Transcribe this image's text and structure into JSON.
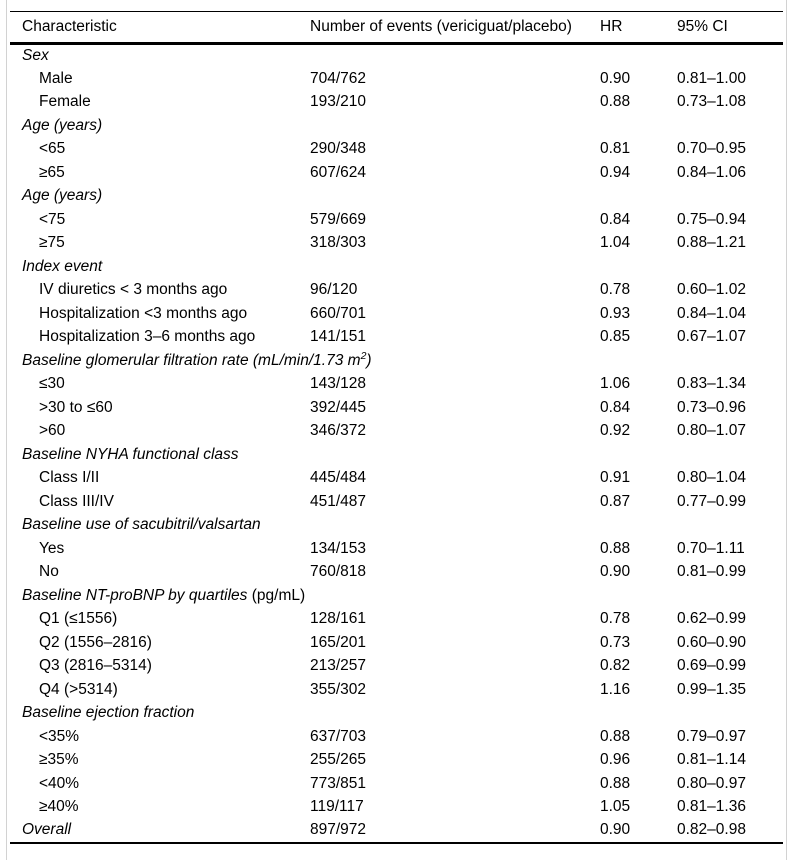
{
  "table": {
    "columns": [
      {
        "label": "Characteristic"
      },
      {
        "label": "Number of events (vericiguat/placebo)"
      },
      {
        "label": "HR"
      },
      {
        "label": "95% CI"
      }
    ],
    "rows": [
      {
        "type": "section",
        "label": "Sex"
      },
      {
        "type": "item",
        "label": "Male",
        "events": "704/762",
        "hr": "0.90",
        "ci": "0.81–1.00"
      },
      {
        "type": "item",
        "label": "Female",
        "events": "193/210",
        "hr": "0.88",
        "ci": "0.73–1.08"
      },
      {
        "type": "section",
        "label": "Age (years)"
      },
      {
        "type": "item",
        "label": "<65",
        "events": "290/348",
        "hr": "0.81",
        "ci": "0.70–0.95"
      },
      {
        "type": "item",
        "label": "≥65",
        "events": "607/624",
        "hr": "0.94",
        "ci": "0.84–1.06"
      },
      {
        "type": "section",
        "label": "Age (years)"
      },
      {
        "type": "item",
        "label": "<75",
        "events": "579/669",
        "hr": "0.84",
        "ci": "0.75–0.94"
      },
      {
        "type": "item",
        "label": "≥75",
        "events": "318/303",
        "hr": "1.04",
        "ci": "0.88–1.21"
      },
      {
        "type": "section",
        "label": "Index event"
      },
      {
        "type": "item",
        "label": "IV diuretics < 3 months ago",
        "events": "96/120",
        "hr": "0.78",
        "ci": "0.60–1.02"
      },
      {
        "type": "item",
        "label": "Hospitalization <3 months ago",
        "events": "660/701",
        "hr": "0.93",
        "ci": "0.84–1.04"
      },
      {
        "type": "item",
        "label": "Hospitalization 3–6 months ago",
        "events": "141/151",
        "hr": "0.85",
        "ci": "0.67–1.07"
      },
      {
        "type": "section",
        "label": "Baseline glomerular filtration rate (mL/min/1.73 m",
        "sup": "2",
        "label_end": ")"
      },
      {
        "type": "item",
        "label": "≤30",
        "events": "143/128",
        "hr": "1.06",
        "ci": "0.83–1.34"
      },
      {
        "type": "item",
        "label": ">30 to ≤60",
        "events": "392/445",
        "hr": "0.84",
        "ci": "0.73–0.96"
      },
      {
        "type": "item",
        "label": ">60",
        "events": "346/372",
        "hr": "0.92",
        "ci": "0.80–1.07"
      },
      {
        "type": "section",
        "label": "Baseline NYHA functional class"
      },
      {
        "type": "item",
        "label": "Class I/II",
        "events": "445/484",
        "hr": "0.91",
        "ci": "0.80–1.04"
      },
      {
        "type": "item",
        "label": "Class III/IV",
        "events": "451/487",
        "hr": "0.87",
        "ci": "0.77–0.99"
      },
      {
        "type": "section",
        "label": "Baseline use of sacubitril/valsartan"
      },
      {
        "type": "item",
        "label": "Yes",
        "events": "134/153",
        "hr": "0.88",
        "ci": "0.70–1.11"
      },
      {
        "type": "item",
        "label": "No",
        "events": "760/818",
        "hr": "0.90",
        "ci": "0.81–0.99"
      },
      {
        "type": "section",
        "label": "Baseline NT-proBNP by quartiles",
        "unit": " (pg/mL)"
      },
      {
        "type": "item",
        "label": "Q1 (≤1556)",
        "events": "128/161",
        "hr": "0.78",
        "ci": "0.62–0.99"
      },
      {
        "type": "item",
        "label": "Q2 (1556–2816)",
        "events": "165/201",
        "hr": "0.73",
        "ci": "0.60–0.90"
      },
      {
        "type": "item",
        "label": "Q3 (2816–5314)",
        "events": "213/257",
        "hr": "0.82",
        "ci": "0.69–0.99"
      },
      {
        "type": "item",
        "label": "Q4 (>5314)",
        "events": "355/302",
        "hr": "1.16",
        "ci": "0.99–1.35"
      },
      {
        "type": "section",
        "label": "Baseline ejection fraction"
      },
      {
        "type": "item",
        "label": "<35%",
        "events": "637/703",
        "hr": "0.88",
        "ci": "0.79–0.97"
      },
      {
        "type": "item",
        "label": "≥35%",
        "events": "255/265",
        "hr": "0.96",
        "ci": "0.81–1.14"
      },
      {
        "type": "item",
        "label": "<40%",
        "events": "773/851",
        "hr": "0.88",
        "ci": "0.80–0.97"
      },
      {
        "type": "item",
        "label": "≥40%",
        "events": "119/117",
        "hr": "1.05",
        "ci": "0.81–1.36"
      },
      {
        "type": "overall",
        "label": "Overall",
        "events": "897/972",
        "hr": "0.90",
        "ci": "0.82–0.98"
      }
    ]
  }
}
